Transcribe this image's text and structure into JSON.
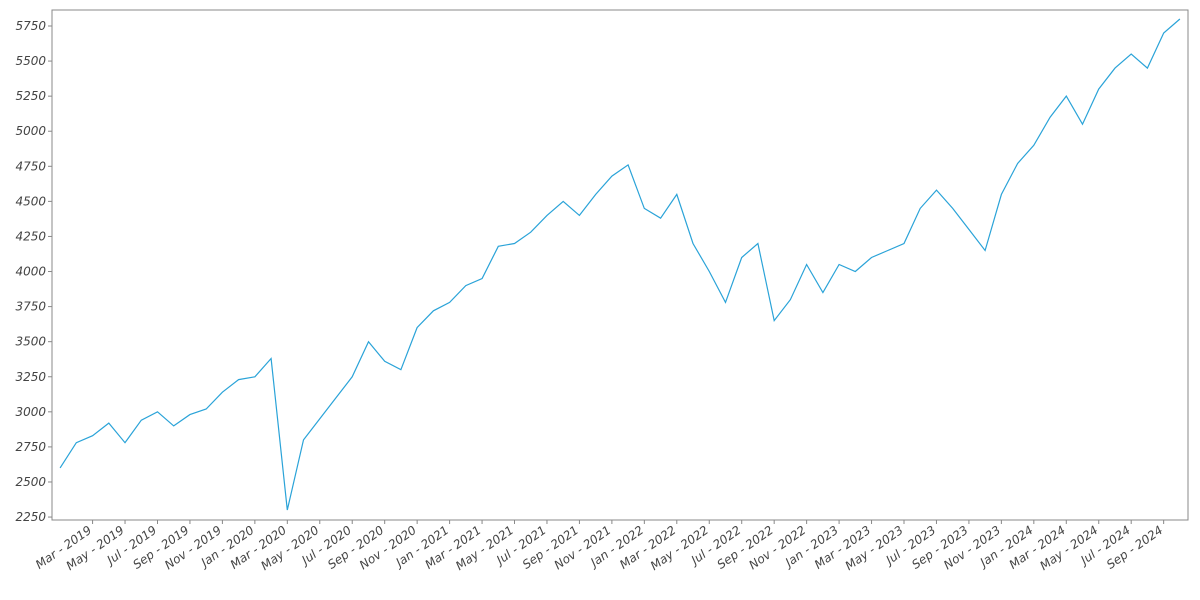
{
  "chart_data": {
    "type": "line",
    "categories": [
      null,
      null,
      "Mar - 2019",
      null,
      "May - 2019",
      null,
      "Jul - 2019",
      null,
      "Sep - 2019",
      null,
      "Nov - 2019",
      null,
      "Jan - 2020",
      null,
      "Mar - 2020",
      null,
      "May - 2020",
      null,
      "Jul - 2020",
      null,
      "Sep - 2020",
      null,
      "Nov - 2020",
      null,
      "Jan - 2021",
      null,
      "Mar - 2021",
      null,
      "May - 2021",
      null,
      "Jul - 2021",
      null,
      "Sep - 2021",
      null,
      "Nov - 2021",
      null,
      "Jan - 2022",
      null,
      "Mar - 2022",
      null,
      "May - 2022",
      null,
      "Jul - 2022",
      null,
      "Sep - 2022",
      null,
      "Nov - 2022",
      null,
      "Jan - 2023",
      null,
      "Mar - 2023",
      null,
      "May - 2023",
      null,
      "Jul - 2023",
      null,
      "Sep - 2023",
      null,
      "Nov - 2023",
      null,
      "Jan - 2024",
      null,
      "Mar - 2024",
      null,
      "May - 2024",
      null,
      "Jul - 2024",
      null,
      "Sep - 2024",
      null
    ],
    "series": [
      {
        "color": "#2aa3d8",
        "values": [
          2600,
          2780,
          2830,
          2920,
          2780,
          2940,
          3000,
          2900,
          2980,
          3020,
          3140,
          3230,
          3250,
          3380,
          2300,
          2800,
          2950,
          3100,
          3250,
          3500,
          3360,
          3300,
          3600,
          3720,
          3780,
          3900,
          3950,
          4180,
          4200,
          4280,
          4400,
          4500,
          4400,
          4550,
          4680,
          4760,
          4450,
          4380,
          4550,
          4200,
          4000,
          3780,
          4100,
          4200,
          3650,
          3800,
          4050,
          3850,
          4050,
          4000,
          4100,
          4150,
          4200,
          4450,
          4580,
          4450,
          4300,
          4150,
          4550,
          4770,
          4900,
          5100,
          5250,
          5050,
          5300,
          5450,
          5550,
          5450,
          5700,
          5800
        ]
      }
    ],
    "ylim": [
      2229,
      5864
    ],
    "yticks": [
      2250,
      2500,
      2750,
      3000,
      3250,
      3500,
      3750,
      4000,
      4250,
      4500,
      4750,
      5000,
      5250,
      5500,
      5750
    ]
  }
}
